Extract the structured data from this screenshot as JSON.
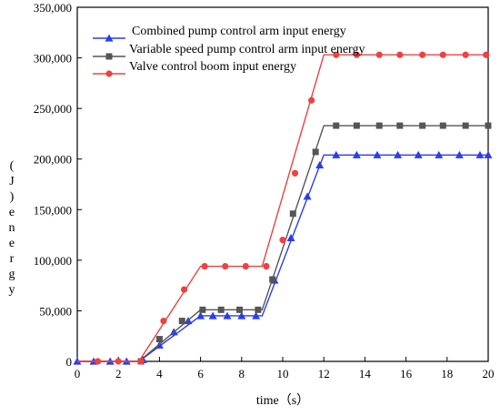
{
  "chart_data": {
    "type": "line",
    "title": "",
    "xlabel": "time（s）",
    "ylabel_chars": [
      "e",
      "n",
      "e",
      "r",
      "g",
      "y",
      "(",
      "J",
      ")"
    ],
    "xlim": [
      0,
      20
    ],
    "ylim": [
      0,
      350000
    ],
    "x_ticks": [
      0,
      2,
      4,
      6,
      8,
      10,
      12,
      14,
      16,
      18,
      20
    ],
    "y_ticks": [
      0,
      50000,
      100000,
      150000,
      200000,
      250000,
      300000,
      350000
    ],
    "y_tick_labels": [
      "0",
      "50,000",
      "100,000",
      "150,000",
      "200,000",
      "250,000",
      "300,000",
      "350,000"
    ],
    "grid": false,
    "legend_position": "top-left",
    "series": [
      {
        "name": "Combined pump control arm input energy",
        "color": "#2b3cf0",
        "marker": "triangle",
        "line": [
          [
            0,
            0
          ],
          [
            3,
            0
          ],
          [
            6,
            45000
          ],
          [
            9,
            45000
          ],
          [
            12,
            204000
          ],
          [
            20,
            204000
          ]
        ],
        "markers": [
          [
            0,
            0
          ],
          [
            0.8,
            0
          ],
          [
            1.6,
            0
          ],
          [
            2.4,
            0
          ],
          [
            3.2,
            1500
          ],
          [
            4.0,
            16000
          ],
          [
            4.7,
            29000
          ],
          [
            5.4,
            40000
          ],
          [
            6.0,
            45000
          ],
          [
            6.6,
            45000
          ],
          [
            7.3,
            45000
          ],
          [
            8.0,
            45000
          ],
          [
            8.7,
            45000
          ],
          [
            9.6,
            80000
          ],
          [
            10.4,
            122000
          ],
          [
            11.2,
            163000
          ],
          [
            11.8,
            194000
          ],
          [
            12.6,
            204000
          ],
          [
            13.6,
            204000
          ],
          [
            14.6,
            204000
          ],
          [
            15.6,
            204000
          ],
          [
            16.6,
            204000
          ],
          [
            17.6,
            204000
          ],
          [
            18.6,
            204000
          ],
          [
            19.6,
            204000
          ],
          [
            20,
            204000
          ]
        ]
      },
      {
        "name": "Variable speed pump control arm input energy",
        "color": "#555555",
        "marker": "square",
        "line": [
          [
            0,
            0
          ],
          [
            3,
            0
          ],
          [
            6,
            51000
          ],
          [
            9,
            51000
          ],
          [
            12,
            233000
          ],
          [
            20,
            233000
          ]
        ],
        "markers": [
          [
            3.1,
            0
          ],
          [
            4.0,
            22000
          ],
          [
            5.1,
            40000
          ],
          [
            6.1,
            51000
          ],
          [
            7.0,
            51000
          ],
          [
            7.9,
            51000
          ],
          [
            8.8,
            51000
          ],
          [
            9.5,
            81000
          ],
          [
            10.5,
            146000
          ],
          [
            11.6,
            207000
          ],
          [
            12.6,
            233000
          ],
          [
            13.6,
            233000
          ],
          [
            14.7,
            233000
          ],
          [
            15.7,
            233000
          ],
          [
            16.8,
            233000
          ],
          [
            17.8,
            233000
          ],
          [
            18.9,
            233000
          ],
          [
            20,
            233000
          ]
        ]
      },
      {
        "name": "Valve control boom input energy",
        "color": "#f04040",
        "marker": "circle",
        "line": [
          [
            0,
            0
          ],
          [
            3,
            0
          ],
          [
            6,
            94000
          ],
          [
            9,
            94000
          ],
          [
            12,
            303000
          ],
          [
            20,
            303000
          ]
        ],
        "markers": [
          [
            1,
            0
          ],
          [
            2,
            0
          ],
          [
            3.1,
            0
          ],
          [
            4.2,
            40000
          ],
          [
            5.2,
            71000
          ],
          [
            6.2,
            94000
          ],
          [
            7.2,
            94000
          ],
          [
            8.2,
            94000
          ],
          [
            9.2,
            94000
          ],
          [
            10.0,
            120000
          ],
          [
            10.6,
            186000
          ],
          [
            11.4,
            258000
          ],
          [
            12.6,
            303000
          ],
          [
            13.6,
            303000
          ],
          [
            14.7,
            303000
          ],
          [
            15.7,
            303000
          ],
          [
            16.8,
            303000
          ],
          [
            17.8,
            303000
          ],
          [
            18.9,
            303000
          ],
          [
            19.9,
            303000
          ]
        ]
      }
    ]
  }
}
